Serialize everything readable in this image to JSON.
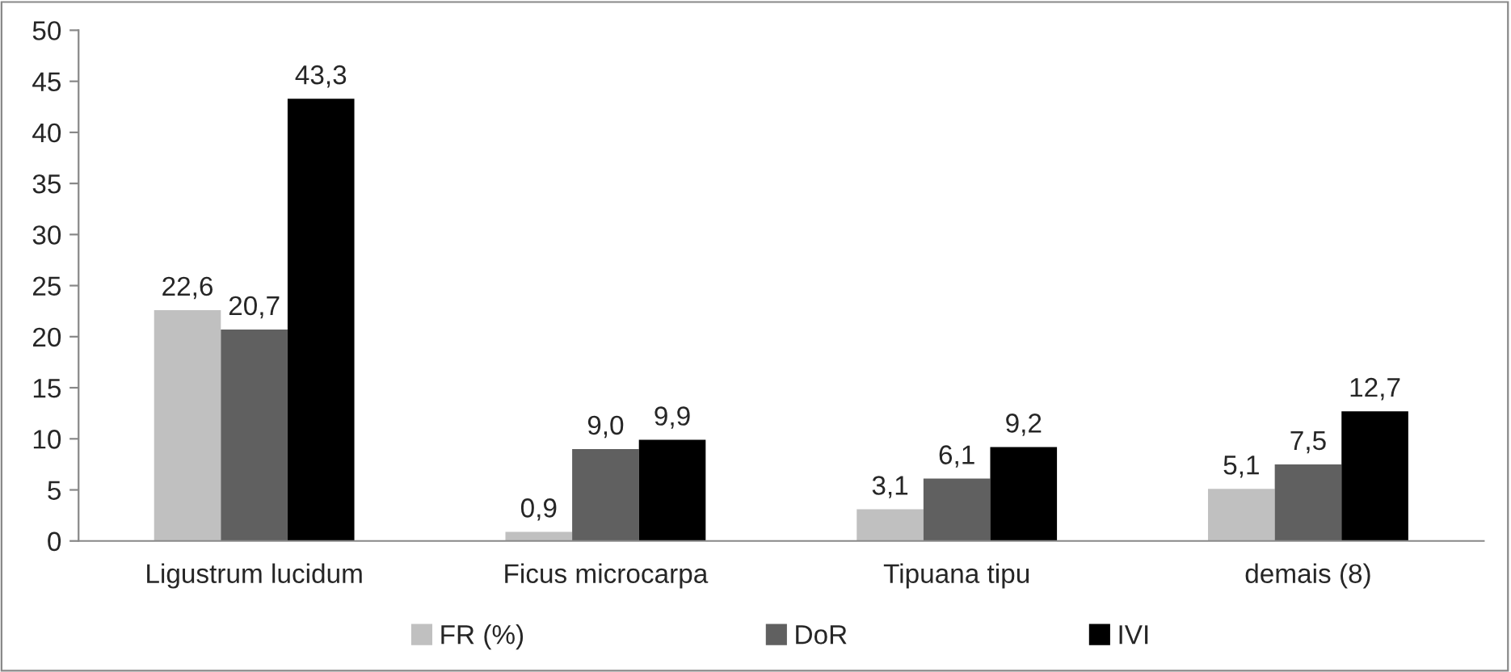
{
  "chart_data": {
    "type": "bar",
    "categories": [
      "Ligustrum lucidum",
      "Ficus microcarpa",
      "Tipuana tipu",
      "demais (8)"
    ],
    "series": [
      {
        "name": "FR (%)",
        "color": "#c0c0c0",
        "values": [
          22.6,
          0.9,
          3.1,
          5.1
        ],
        "value_labels": [
          "22,6",
          "0,9",
          "3,1",
          "5,1"
        ]
      },
      {
        "name": "DoR",
        "color": "#606060",
        "values": [
          20.7,
          9.0,
          6.1,
          7.5
        ],
        "value_labels": [
          "20,7",
          "9,0",
          "6,1",
          "7,5"
        ]
      },
      {
        "name": "IVI",
        "color": "#000000",
        "values": [
          43.3,
          9.9,
          9.2,
          12.7
        ],
        "value_labels": [
          "43,3",
          "9,9",
          "9,2",
          "12,7"
        ]
      }
    ],
    "ylim": [
      0,
      50
    ],
    "yticks": [
      0,
      5,
      10,
      15,
      20,
      25,
      30,
      35,
      40,
      45,
      50
    ],
    "grid": false,
    "legend": "bottom"
  }
}
